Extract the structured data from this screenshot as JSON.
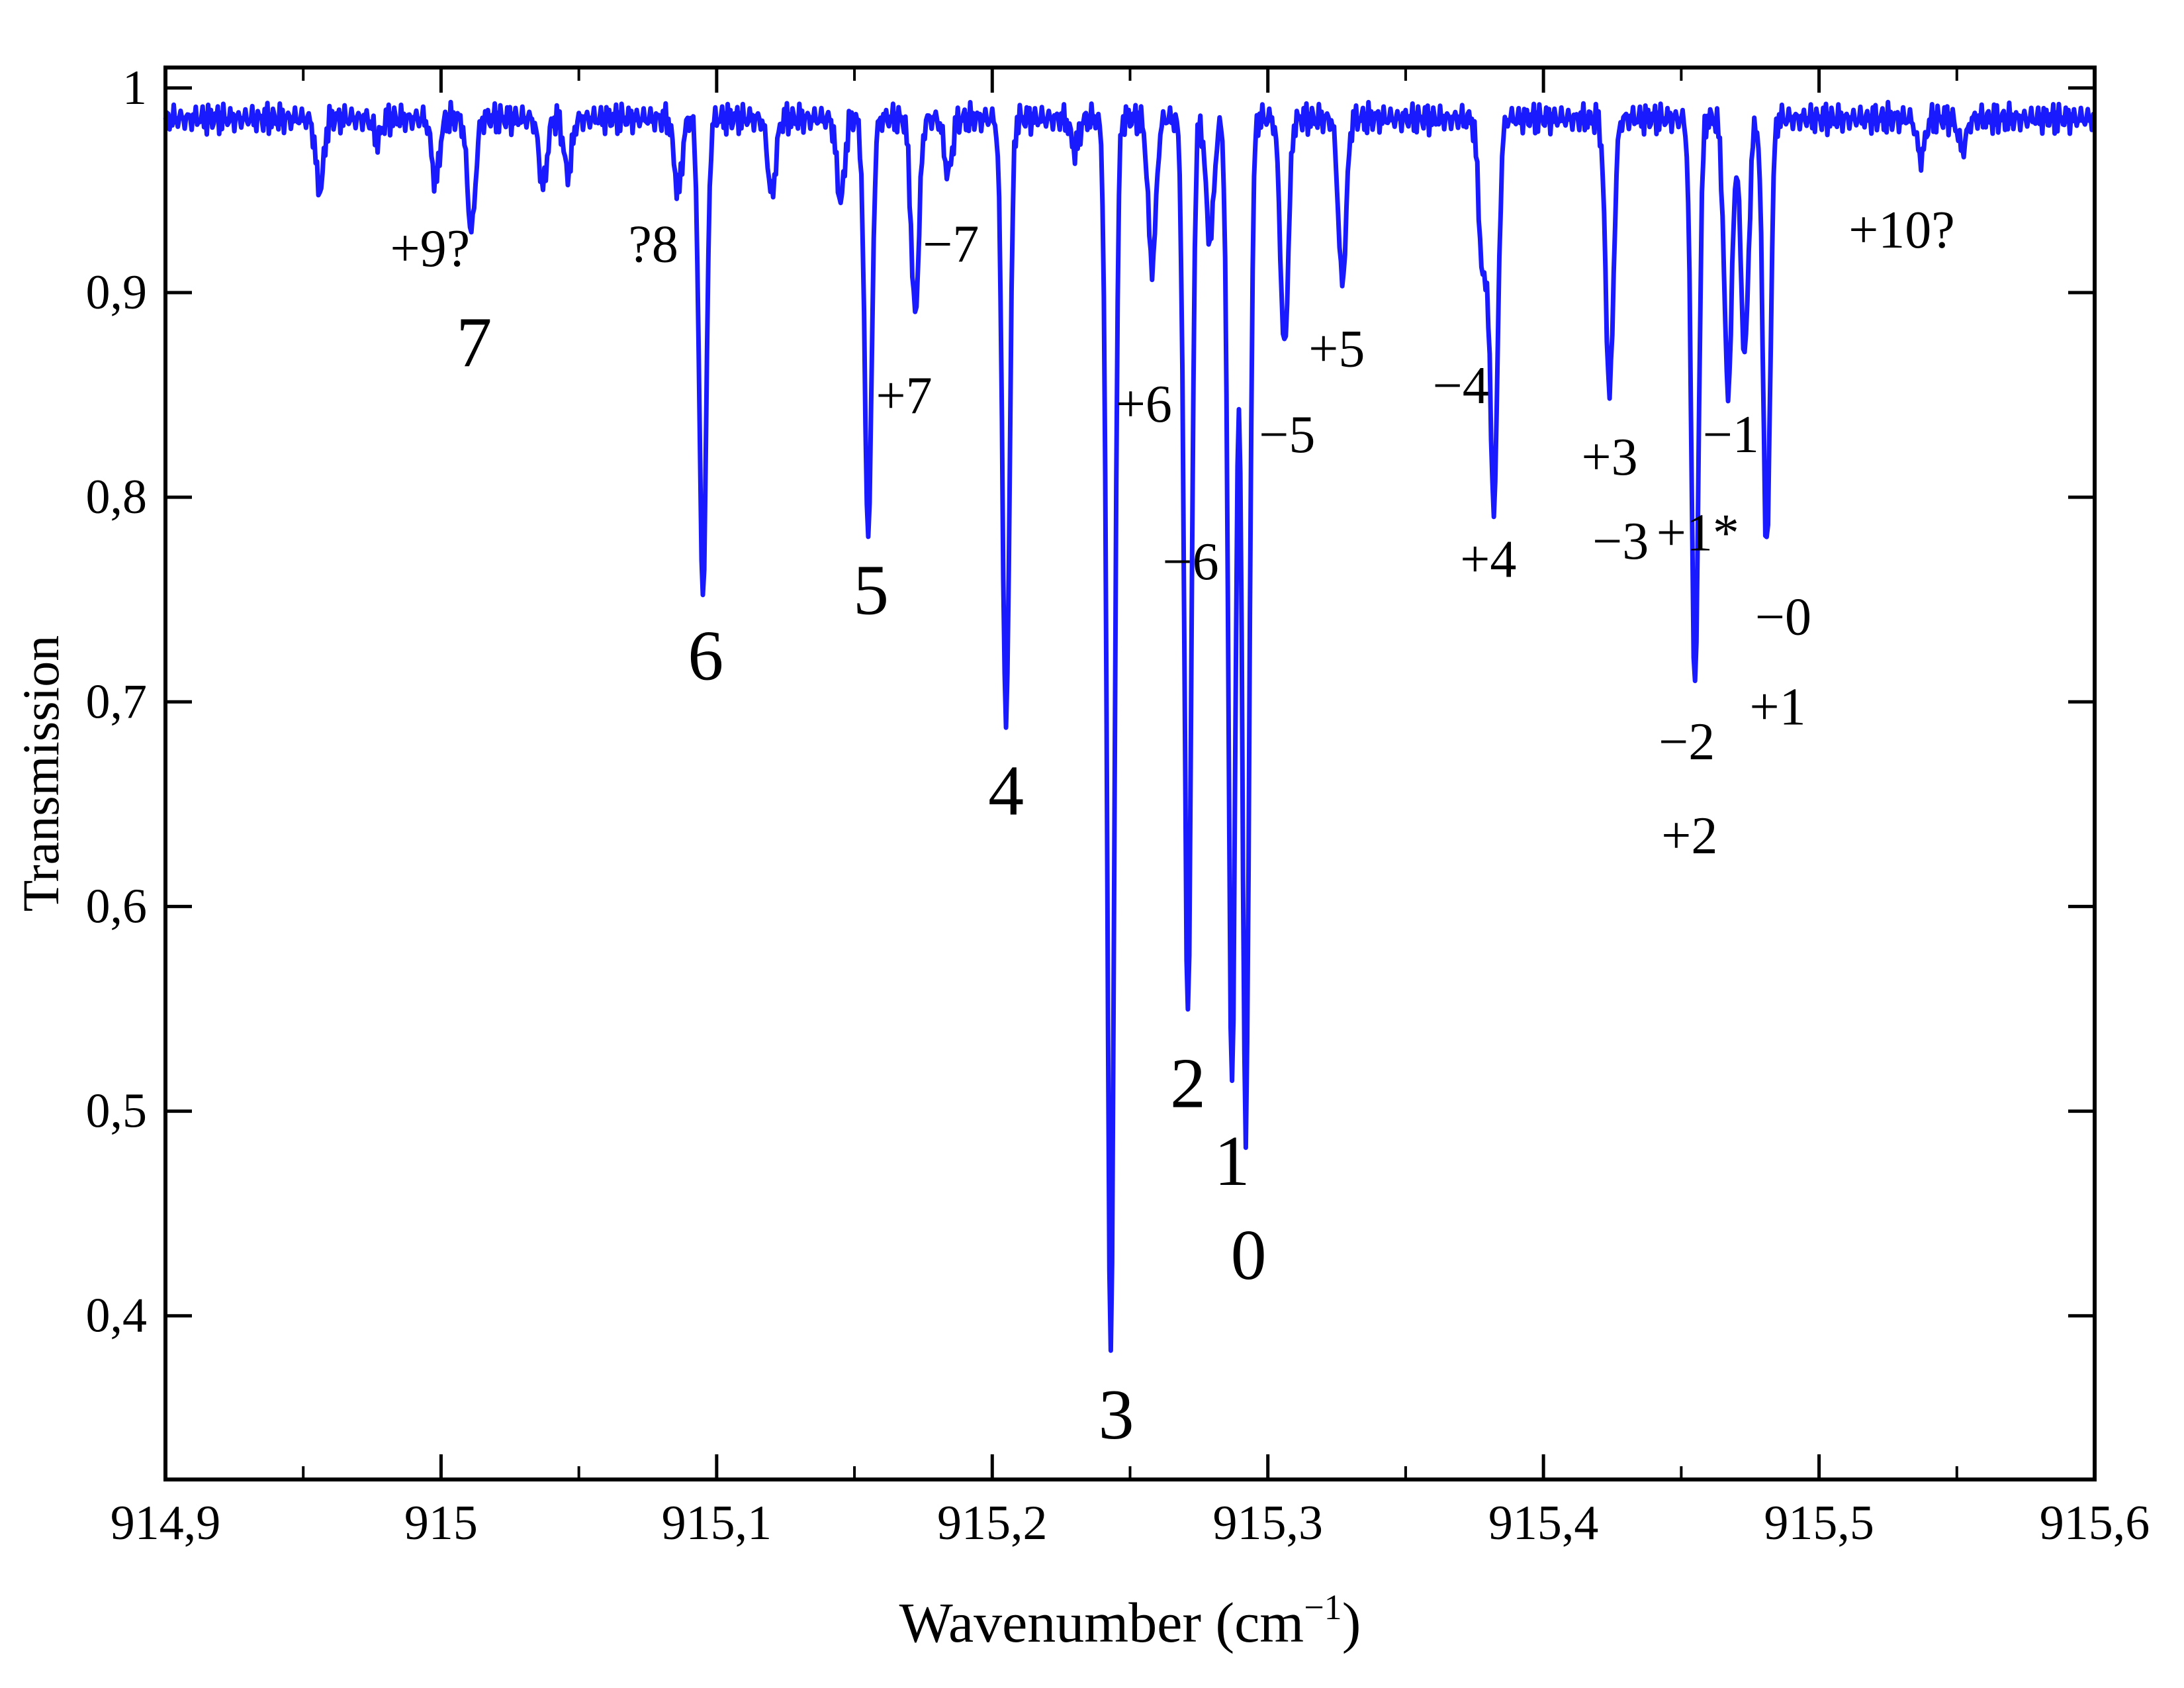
{
  "chart_data": {
    "type": "line",
    "xlabel": "Wavenumber (cm",
    "xlabel_sup": "−1",
    "xlabel_close": ")",
    "ylabel": "Transmission",
    "xlim": [
      914.9,
      915.6
    ],
    "ylim": [
      0.32,
      1.01
    ],
    "grid": false,
    "line_color": "#1a1aff",
    "x_ticks": [
      {
        "v": 914.9,
        "label": "914,9"
      },
      {
        "v": 915.0,
        "label": "915"
      },
      {
        "v": 915.1,
        "label": "915,1"
      },
      {
        "v": 915.2,
        "label": "915,2"
      },
      {
        "v": 915.3,
        "label": "915,3"
      },
      {
        "v": 915.4,
        "label": "915,4"
      },
      {
        "v": 915.5,
        "label": "915,5"
      },
      {
        "v": 915.6,
        "label": "915,6"
      }
    ],
    "x_minor_ticks": [
      914.95,
      915.05,
      915.15,
      915.25,
      915.35,
      915.45,
      915.55
    ],
    "y_ticks": [
      {
        "v": 0.4,
        "label": "0,4"
      },
      {
        "v": 0.5,
        "label": "0,5"
      },
      {
        "v": 0.6,
        "label": "0,6"
      },
      {
        "v": 0.7,
        "label": "0,7"
      },
      {
        "v": 0.8,
        "label": "0,8"
      },
      {
        "v": 0.9,
        "label": "0,9"
      },
      {
        "v": 1.0,
        "label": "1"
      }
    ],
    "baseline": 0.985,
    "lines": [
      {
        "x": 914.956,
        "t": 0.95
      },
      {
        "x": 914.977,
        "t": 0.975
      },
      {
        "x": 914.998,
        "t": 0.955
      },
      {
        "x": 915.011,
        "t": 0.93
      },
      {
        "x": 915.037,
        "t": 0.952
      },
      {
        "x": 915.046,
        "t": 0.958
      },
      {
        "x": 915.086,
        "t": 0.95
      },
      {
        "x": 915.095,
        "t": 0.752
      },
      {
        "x": 915.12,
        "t": 0.948
      },
      {
        "x": 915.145,
        "t": 0.945
      },
      {
        "x": 915.155,
        "t": 0.783
      },
      {
        "x": 915.172,
        "t": 0.89
      },
      {
        "x": 915.184,
        "t": 0.958
      },
      {
        "x": 915.205,
        "t": 0.688
      },
      {
        "x": 915.23,
        "t": 0.97
      },
      {
        "x": 915.243,
        "t": 0.382
      },
      {
        "x": 915.258,
        "t": 0.913
      },
      {
        "x": 915.271,
        "t": 0.548
      },
      {
        "x": 915.279,
        "t": 0.925
      },
      {
        "x": 915.287,
        "t": 0.512
      },
      {
        "x": 915.292,
        "t": 0.49
      },
      {
        "x": 915.306,
        "t": 0.873
      },
      {
        "x": 915.327,
        "t": 0.905
      },
      {
        "x": 915.378,
        "t": 0.91
      },
      {
        "x": 915.382,
        "t": 0.797
      },
      {
        "x": 915.424,
        "t": 0.852
      },
      {
        "x": 915.455,
        "t": 0.707
      },
      {
        "x": 915.467,
        "t": 0.852
      },
      {
        "x": 915.473,
        "t": 0.87
      },
      {
        "x": 915.481,
        "t": 0.773
      },
      {
        "x": 915.537,
        "t": 0.966
      },
      {
        "x": 915.552,
        "t": 0.97
      }
    ],
    "annotations": [
      {
        "text": "7",
        "x": 915.012,
        "y": 0.864,
        "size": "big"
      },
      {
        "text": "+9?",
        "x": 914.996,
        "y": 0.913,
        "size": "small"
      },
      {
        "text": "?8",
        "x": 915.077,
        "y": 0.915,
        "size": "small"
      },
      {
        "text": "6",
        "x": 915.096,
        "y": 0.711,
        "size": "big"
      },
      {
        "text": "5",
        "x": 915.156,
        "y": 0.743,
        "size": "big"
      },
      {
        "text": "+7",
        "x": 915.168,
        "y": 0.841,
        "size": "small"
      },
      {
        "text": "−7",
        "x": 915.185,
        "y": 0.915,
        "size": "small"
      },
      {
        "text": "4",
        "x": 915.205,
        "y": 0.645,
        "size": "big"
      },
      {
        "text": "+6",
        "x": 915.255,
        "y": 0.837,
        "size": "small"
      },
      {
        "text": "3",
        "x": 915.245,
        "y": 0.34,
        "size": "big"
      },
      {
        "text": "−6",
        "x": 915.272,
        "y": 0.76,
        "size": "small"
      },
      {
        "text": "2",
        "x": 915.271,
        "y": 0.502,
        "size": "big"
      },
      {
        "text": "−5",
        "x": 915.307,
        "y": 0.822,
        "size": "small"
      },
      {
        "text": "1",
        "x": 915.287,
        "y": 0.464,
        "size": "big"
      },
      {
        "text": "0",
        "x": 915.293,
        "y": 0.418,
        "size": "big"
      },
      {
        "text": "+5",
        "x": 915.325,
        "y": 0.864,
        "size": "small"
      },
      {
        "text": "−4",
        "x": 915.37,
        "y": 0.846,
        "size": "small"
      },
      {
        "text": "+4",
        "x": 915.38,
        "y": 0.761,
        "size": "small"
      },
      {
        "text": "+3",
        "x": 915.424,
        "y": 0.811,
        "size": "small"
      },
      {
        "text": "−3",
        "x": 915.428,
        "y": 0.77,
        "size": "small"
      },
      {
        "text": "+1*",
        "x": 915.456,
        "y": 0.774,
        "size": "small"
      },
      {
        "text": "−1",
        "x": 915.468,
        "y": 0.822,
        "size": "small"
      },
      {
        "text": "−0",
        "x": 915.487,
        "y": 0.733,
        "size": "small"
      },
      {
        "text": "+1",
        "x": 915.485,
        "y": 0.689,
        "size": "small"
      },
      {
        "text": "−2",
        "x": 915.452,
        "y": 0.672,
        "size": "small"
      },
      {
        "text": "+2",
        "x": 915.453,
        "y": 0.626,
        "size": "small"
      },
      {
        "text": "+10?",
        "x": 915.53,
        "y": 0.922,
        "size": "small"
      }
    ]
  }
}
